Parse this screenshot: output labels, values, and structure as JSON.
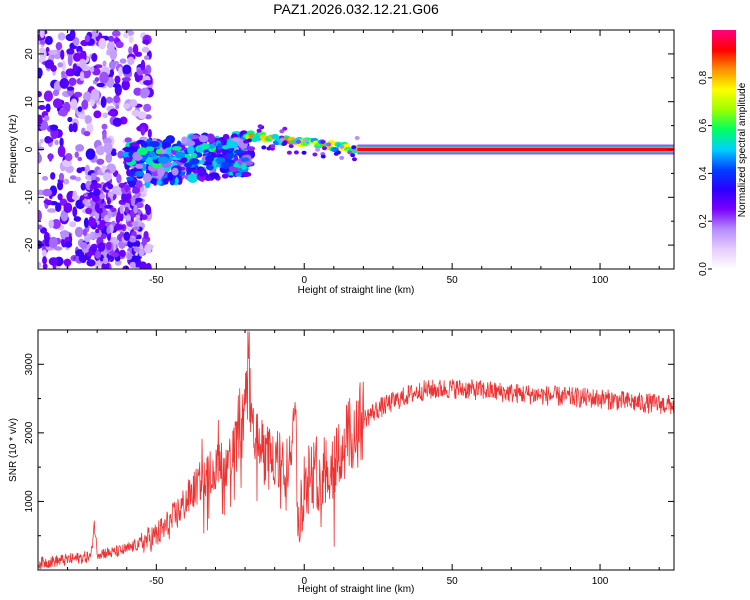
{
  "title": "PAZ1.2026.032.12.21.G06",
  "chart_data": [
    {
      "type": "heatmap",
      "xlabel": "Height of straight line (km)",
      "ylabel": "Frequency (Hz)",
      "xlim": [
        -90,
        125
      ],
      "ylim": [
        -25,
        25
      ],
      "xticks": [
        -50,
        0,
        50,
        100
      ],
      "yticks": [
        -20,
        -10,
        0,
        10,
        20
      ],
      "colorbar": {
        "label": "Normalized spectral amplitude",
        "range": [
          0,
          1
        ],
        "ticks": [
          "0.0",
          "0.2",
          "0.4",
          "0.6",
          "0.8"
        ],
        "tick_values": [
          0.0,
          0.2,
          0.4,
          0.6,
          0.8
        ],
        "colors": [
          "#ffffff",
          "#e6ccff",
          "#b58cff",
          "#7a00ff",
          "#2a00ff",
          "#0040ff",
          "#00d0ff",
          "#00ff60",
          "#9cff00",
          "#ffff00",
          "#ff9000",
          "#ff0000",
          "#ff0080"
        ]
      },
      "features": [
        {
          "x_start": 18,
          "x_end": 125,
          "freq": 0,
          "amplitude": 0.95,
          "description": "steady carrier line"
        },
        {
          "x_start": -20,
          "x_end": 18,
          "freq_start": 3,
          "freq_end": 0,
          "amplitude": 0.7,
          "description": "descending tone"
        },
        {
          "x_start": -55,
          "x_end": -20,
          "freq": -2,
          "amplitude": 0.35,
          "description": "scattered energy"
        },
        {
          "x_start": -90,
          "x_end": -55,
          "freq_spread": [
            -25,
            25
          ],
          "amplitude": 0.2,
          "description": "diffuse noise"
        }
      ]
    },
    {
      "type": "line",
      "xlabel": "Height of straight line (km)",
      "ylabel": "SNR (10 * v/v)",
      "xlim": [
        -90,
        125
      ],
      "ylim": [
        0,
        3500
      ],
      "xticks": [
        -50,
        0,
        50,
        100
      ],
      "yticks": [
        1000,
        2000,
        3000
      ],
      "color": "#ee3333",
      "series": [
        {
          "name": "SNR",
          "x": [
            -90,
            -80,
            -72,
            -71,
            -70,
            -65,
            -60,
            -55,
            -50,
            -45,
            -40,
            -35,
            -30,
            -25,
            -22,
            -20,
            -19,
            -18,
            -15,
            -10,
            -5,
            -3,
            -2,
            0,
            5,
            10,
            15,
            20,
            25,
            30,
            35,
            40,
            50,
            60,
            70,
            80,
            90,
            100,
            110,
            120,
            125
          ],
          "y": [
            100,
            150,
            200,
            700,
            250,
            250,
            300,
            400,
            500,
            700,
            1000,
            1300,
            1500,
            1600,
            2000,
            2300,
            3450,
            2200,
            1800,
            1600,
            1500,
            2900,
            500,
            1300,
            1400,
            1600,
            1900,
            2200,
            2350,
            2450,
            2550,
            2620,
            2650,
            2620,
            2580,
            2550,
            2520,
            2500,
            2450,
            2420,
            2400
          ]
        }
      ]
    }
  ]
}
